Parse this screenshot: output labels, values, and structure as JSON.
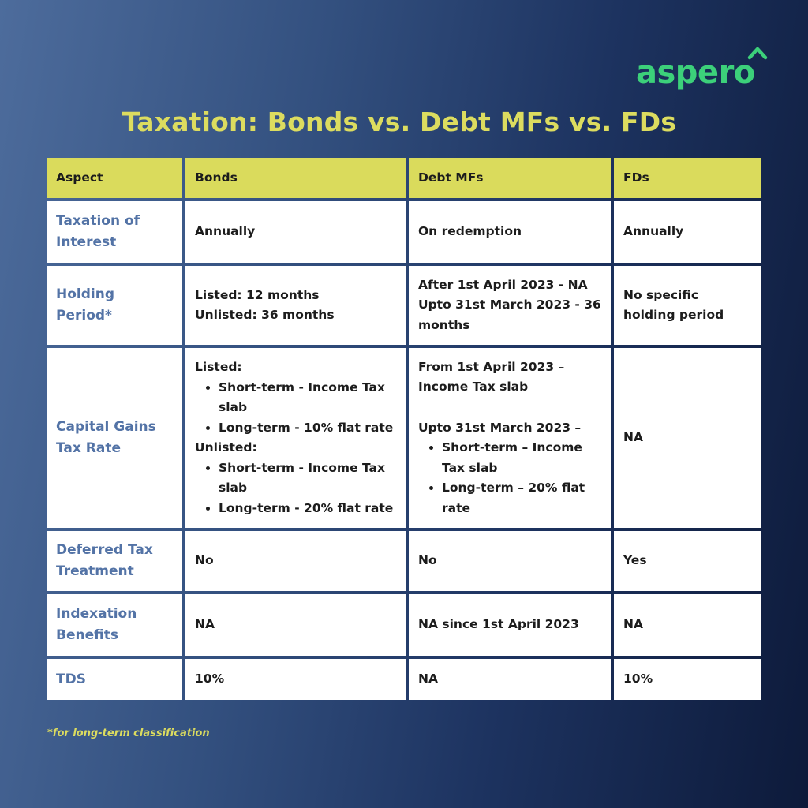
{
  "logo": {
    "text": "aspero",
    "color": "#3cd07a"
  },
  "title": "Taxation: Bonds vs. Debt MFs vs. FDs",
  "colors": {
    "title": "#dcdc5f",
    "header_bg": "#dadb5c",
    "aspect_text": "#5373a6"
  },
  "table": {
    "headers": [
      "Aspect",
      "Bonds",
      "Debt MFs",
      "FDs"
    ],
    "rows": {
      "interest": {
        "aspect": "Taxation of Interest",
        "bonds": "Annually",
        "debt": "On redemption",
        "fds": "Annually"
      },
      "holding": {
        "aspect": "Holding Period*",
        "bonds_1": "Listed: 12 months",
        "bonds_2": "Unlisted: 36 months",
        "debt_1": "After 1st April 2023 - NA",
        "debt_2": "Upto 31st March 2023 - 36 months",
        "fds": "No specific holding period"
      },
      "capital": {
        "aspect": "Capital Gains Tax Rate",
        "bonds_listed": "Listed:",
        "bonds_listed_items": [
          "Short-term - Income Tax slab",
          "Long-term - 10% flat rate"
        ],
        "bonds_unlisted": "Unlisted:",
        "bonds_unlisted_items": [
          "Short-term - Income Tax slab",
          "Long-term - 20% flat rate"
        ],
        "debt_1": "From 1st April 2023 – Income Tax slab",
        "debt_2": "Upto 31st March 2023 –",
        "debt_items": [
          "Short-term – Income Tax slab",
          "Long-term – 20% flat rate"
        ],
        "fds": "NA"
      },
      "deferred": {
        "aspect": "Deferred Tax Treatment",
        "bonds": "No",
        "debt": "No",
        "fds": "Yes"
      },
      "indexation": {
        "aspect": "Indexation Benefits",
        "bonds": "NA",
        "debt": "NA since 1st April 2023",
        "fds": "NA"
      },
      "tds": {
        "aspect": "TDS",
        "bonds": "10%",
        "debt": "NA",
        "fds": "10%"
      }
    }
  },
  "footnote": "*for long-term classification"
}
